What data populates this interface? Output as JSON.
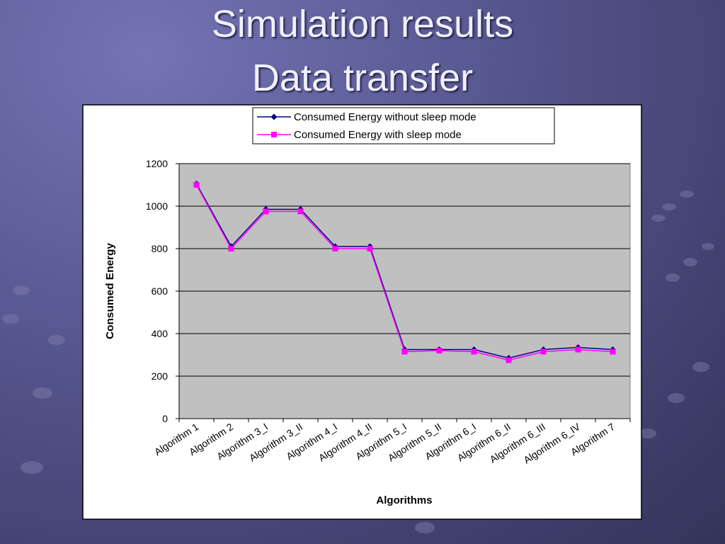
{
  "slide": {
    "title": [
      "Simulation results",
      "Data transfer"
    ]
  },
  "chart_data": {
    "type": "line",
    "x_label": "Algorithms",
    "y_label": "Consumed Energy",
    "categories": [
      "Algorithm 1",
      "Algorithm 2",
      "Algorithm 3_I",
      "Algorithm 3_II",
      "Algorithm 4_I",
      "Algorithm 4_II",
      "Algorithm 5_I",
      "Algorithm 5_II",
      "Algorithm 6_I",
      "Algorithm 6_II",
      "Algorithm 6_III",
      "Algorithm 6_IV",
      "Algorithm 7"
    ],
    "series": [
      {
        "name": "Consumed Energy without sleep mode",
        "color": "#000080",
        "marker": "diamond",
        "values": [
          1105,
          810,
          985,
          985,
          810,
          810,
          325,
          325,
          325,
          285,
          325,
          335,
          325
        ]
      },
      {
        "name": "Consumed Energy with sleep mode",
        "color": "#ff00ff",
        "marker": "square",
        "values": [
          1100,
          800,
          975,
          975,
          800,
          800,
          315,
          320,
          315,
          275,
          315,
          325,
          315
        ]
      }
    ],
    "ylim": [
      0,
      1200
    ],
    "yticks": [
      0,
      200,
      400,
      600,
      800,
      1000,
      1200
    ],
    "grid": true,
    "plot_background": "#c0c0c0"
  }
}
